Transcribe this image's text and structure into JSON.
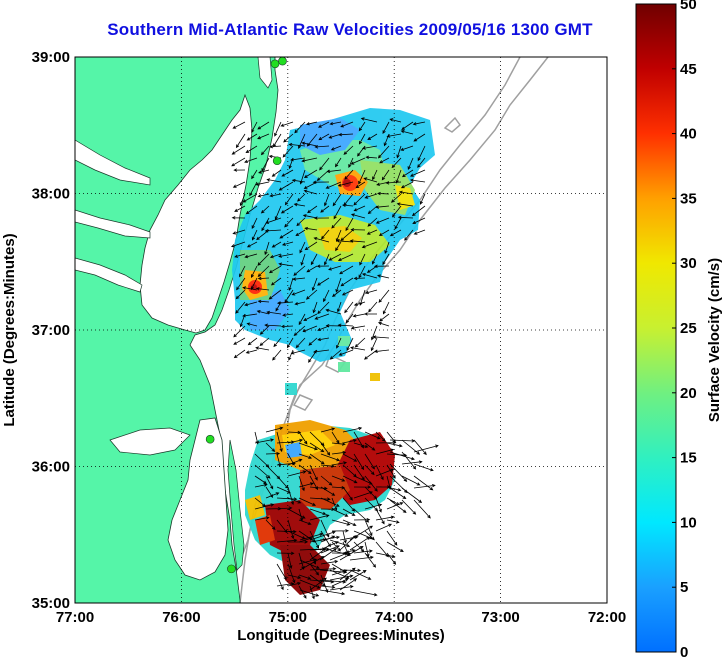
{
  "title": "Southern Mid-Atlantic Raw Velocities 2009/05/16 1300 GMT",
  "x_axis": {
    "label": "Longitude (Degrees:Minutes)",
    "ticks": [
      "77:00",
      "76:00",
      "75:00",
      "74:00",
      "73:00",
      "72:00"
    ]
  },
  "y_axis": {
    "label": "Latitude (Degrees:Minutes)",
    "ticks": [
      "39:00",
      "38:00",
      "37:00",
      "36:00",
      "35:00"
    ]
  },
  "colorbar": {
    "label": "Surface Velocity (cm/s)",
    "ticks": [
      "50",
      "45",
      "40",
      "35",
      "30",
      "25",
      "20",
      "15",
      "10",
      "5",
      "0"
    ]
  },
  "colors": {
    "land": "#55f5a8",
    "title": "#1010e0",
    "bathymetry": "#a0a0a0",
    "station": "#22dd22"
  },
  "map": {
    "grid": true,
    "lon_range": [
      -77,
      -72
    ],
    "lat_range": [
      35,
      39
    ],
    "stations": [
      {
        "lon": -75.12,
        "lat": 38.95
      },
      {
        "lon": -75.05,
        "lat": 38.97
      },
      {
        "lon": -75.1,
        "lat": 38.24
      },
      {
        "lon": -75.73,
        "lat": 36.2
      },
      {
        "lon": -75.53,
        "lat": 35.25
      }
    ]
  }
}
